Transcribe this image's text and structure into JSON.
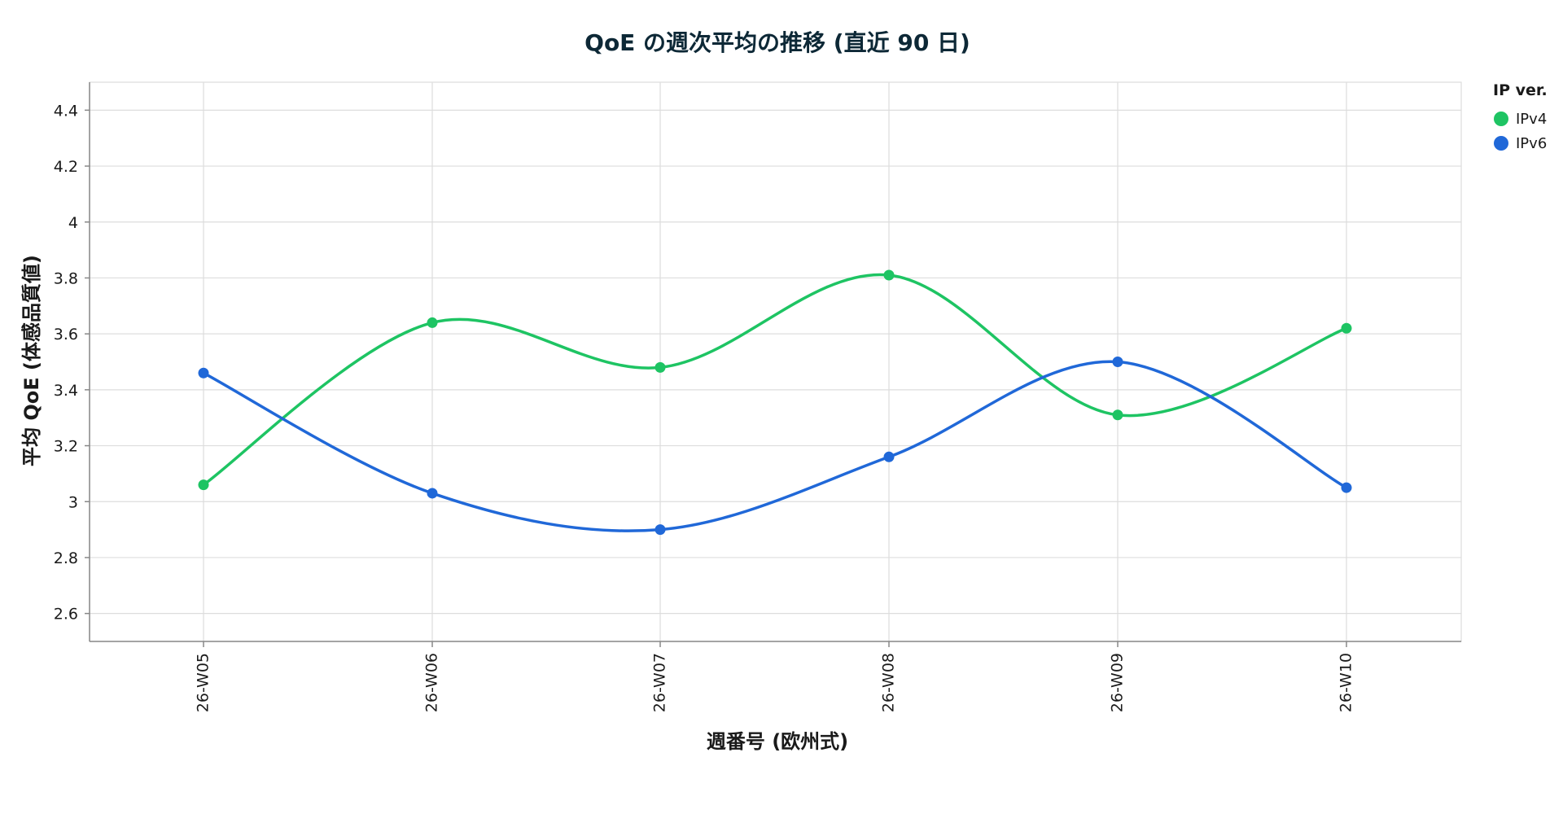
{
  "chart_data": {
    "type": "line",
    "title": "QoE の週次平均の推移 (直近 90 日)",
    "xlabel": "週番号 (欧州式)",
    "ylabel": "平均 QoE (体感品質値)",
    "categories": [
      "26-W05",
      "26-W06",
      "26-W07",
      "26-W08",
      "26-W09",
      "26-W10"
    ],
    "ylim": [
      2.5,
      4.5
    ],
    "yticks": [
      2.6,
      2.8,
      3,
      3.2,
      3.4,
      3.6,
      3.8,
      4,
      4.2,
      4.4
    ],
    "ytick_labels": [
      "2.6",
      "2.8",
      "3",
      "3.2",
      "3.4",
      "3.6",
      "3.8",
      "4",
      "4.2",
      "4.4"
    ],
    "grid": true,
    "legend": {
      "title": "IP ver.",
      "position": "top-right"
    },
    "series": [
      {
        "name": "IPv4",
        "color": "#1ec463",
        "values": [
          3.06,
          3.64,
          3.48,
          3.81,
          3.31,
          3.62
        ]
      },
      {
        "name": "IPv6",
        "color": "#2068d8",
        "values": [
          3.46,
          3.03,
          2.9,
          3.16,
          3.5,
          3.05
        ]
      }
    ]
  }
}
